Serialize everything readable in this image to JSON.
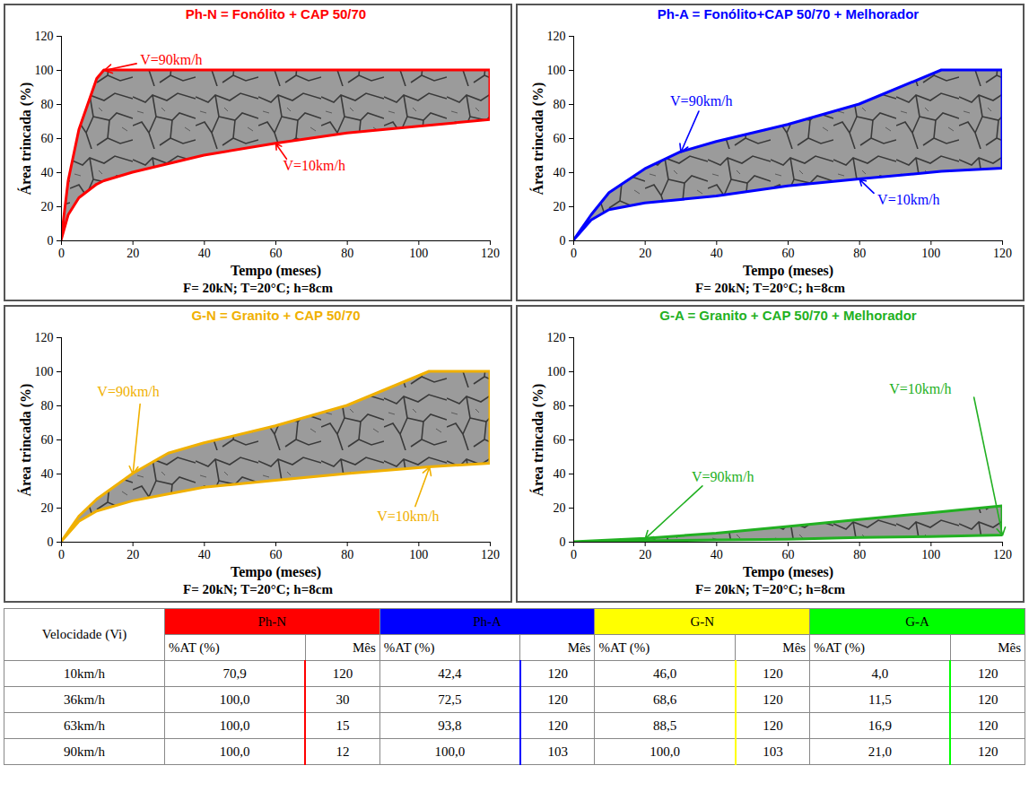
{
  "chart_data": [
    {
      "type": "area",
      "title": "Ph-N = Fonólito + CAP 50/70",
      "color": "#ff0000",
      "x_label": "Tempo (meses)",
      "y_label": "Área trincada (%)",
      "caption": "F= 20kN; T=20°C; h=8cm",
      "x": [
        0,
        2,
        5,
        10,
        12,
        20,
        40,
        60,
        80,
        100,
        120
      ],
      "series": [
        {
          "name": "V=90km/h",
          "values": [
            0,
            35,
            65,
            95,
            100,
            100,
            100,
            100,
            100,
            100,
            100
          ]
        },
        {
          "name": "V=10km/h",
          "values": [
            0,
            15,
            25,
            33,
            35,
            40,
            50,
            57,
            63,
            67,
            70.9
          ]
        }
      ],
      "xlim": [
        0,
        120
      ],
      "xticks": [
        0,
        20,
        40,
        60,
        80,
        100,
        120
      ],
      "ylim": [
        0,
        120
      ],
      "yticks": [
        0,
        20,
        40,
        60,
        80,
        100,
        120
      ],
      "grid": false
    },
    {
      "type": "area",
      "title": "Ph-A = Fonólito+CAP 50/70 + Melhorador",
      "color": "#0000ff",
      "x_label": "Tempo (meses)",
      "y_label": "Área trincada (%)",
      "caption": "F= 20kN; T=20°C; h=8cm",
      "x": [
        0,
        5,
        10,
        20,
        30,
        40,
        60,
        80,
        103,
        120
      ],
      "series": [
        {
          "name": "V=90km/h",
          "values": [
            0,
            15,
            28,
            42,
            52,
            58,
            68,
            80,
            100,
            100
          ]
        },
        {
          "name": "V=10km/h",
          "values": [
            0,
            12,
            18,
            22,
            24,
            26,
            32,
            36,
            40.5,
            42.4
          ]
        }
      ],
      "xlim": [
        0,
        120
      ],
      "xticks": [
        0,
        20,
        40,
        60,
        80,
        100,
        120
      ],
      "ylim": [
        0,
        120
      ],
      "yticks": [
        0,
        20,
        40,
        60,
        80,
        100,
        120
      ],
      "grid": false
    },
    {
      "type": "area",
      "title": "G-N = Granito + CAP 50/70",
      "color": "#f0b000",
      "x_label": "Tempo (meses)",
      "y_label": "Área trincada (%)",
      "caption": "F= 20kN; T=20°C; h=8cm",
      "x": [
        0,
        5,
        10,
        20,
        30,
        40,
        60,
        80,
        103,
        120
      ],
      "series": [
        {
          "name": "V=90km/h",
          "values": [
            0,
            15,
            25,
            40,
            52,
            58,
            68,
            80,
            100,
            100
          ]
        },
        {
          "name": "V=10km/h",
          "values": [
            0,
            12,
            18,
            24,
            28,
            32,
            36,
            40,
            44,
            46
          ]
        }
      ],
      "xlim": [
        0,
        120
      ],
      "xticks": [
        0,
        20,
        40,
        60,
        80,
        100,
        120
      ],
      "ylim": [
        0,
        120
      ],
      "yticks": [
        0,
        20,
        40,
        60,
        80,
        100,
        120
      ],
      "grid": false
    },
    {
      "type": "area",
      "title": "G-A = Granito + CAP 50/70 + Melhorador",
      "color": "#22b022",
      "x_label": "Tempo (meses)",
      "y_label": "Área trincada (%)",
      "caption": "F= 20kN; T=20°C; h=8cm",
      "x": [
        0,
        20,
        40,
        60,
        80,
        100,
        120
      ],
      "series": [
        {
          "name": "V=90km/h",
          "values": [
            0,
            2,
            5,
            9,
            13,
            17,
            21
          ]
        },
        {
          "name": "V=10km/h",
          "values": [
            0,
            0.5,
            1,
            1.5,
            2.5,
            3,
            4
          ]
        }
      ],
      "xlim": [
        0,
        120
      ],
      "xticks": [
        0,
        20,
        40,
        60,
        80,
        100,
        120
      ],
      "ylim": [
        0,
        120
      ],
      "yticks": [
        0,
        20,
        40,
        60,
        80,
        100,
        120
      ],
      "grid": false
    }
  ],
  "table": {
    "header": "Velocidade (Vi)",
    "groups": [
      {
        "name": "Ph-N",
        "color": "#ff0000"
      },
      {
        "name": "Ph-A",
        "color": "#0000ff"
      },
      {
        "name": "G-N",
        "color": "#ffff00"
      },
      {
        "name": "G-A",
        "color": "#00ff00"
      }
    ],
    "subheaders": [
      "%AT (%)",
      "Mês"
    ],
    "rows": [
      [
        "10km/h",
        "70,9",
        "120",
        "42,4",
        "120",
        "46,0",
        "120",
        "4,0",
        "120"
      ],
      [
        "36km/h",
        "100,0",
        "30",
        "72,5",
        "120",
        "68,6",
        "120",
        "11,5",
        "120"
      ],
      [
        "63km/h",
        "100,0",
        "15",
        "93,8",
        "120",
        "88,5",
        "120",
        "16,9",
        "120"
      ],
      [
        "90km/h",
        "100,0",
        "12",
        "100,0",
        "103",
        "100,0",
        "103",
        "21,0",
        "120"
      ]
    ]
  }
}
